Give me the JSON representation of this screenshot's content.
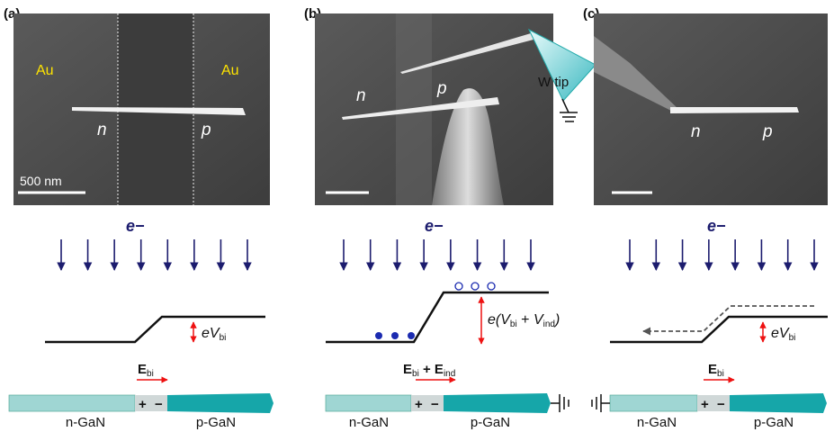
{
  "panels": [
    {
      "label": "(a)",
      "image": {
        "left_metal": "Au",
        "right_metal": "Au",
        "n": "n",
        "p": "p",
        "scale_bar": "500 nm"
      },
      "electrons": "e−",
      "band": {
        "e": "eV",
        "sub": "bi"
      },
      "field": {
        "main": "E",
        "sub": "bi"
      },
      "junction": {
        "plus": "+",
        "minus": "−"
      },
      "n_side": "n-GaN",
      "p_side": "p-GaN"
    },
    {
      "label": "(b)",
      "image": {
        "n": "n",
        "p": "p",
        "tip": "W tip"
      },
      "electrons": "e−",
      "band": {
        "open": "e(",
        "v1": "V",
        "sub1": "bi",
        "plus": " + ",
        "v2": "V",
        "sub2": "ind",
        "close": ")"
      },
      "field": {
        "main1": "E",
        "sub1": "bi",
        "plus": " + ",
        "main2": "E",
        "sub2": "ind"
      },
      "junction": {
        "plus": "+",
        "minus": "−"
      },
      "n_side": "n-GaN",
      "p_side": "p-GaN"
    },
    {
      "label": "(c)",
      "image": {
        "n": "n",
        "p": "p"
      },
      "electrons": "e−",
      "band": {
        "e": "eV",
        "sub": "bi"
      },
      "field": {
        "main": "E",
        "sub": "bi"
      },
      "junction": {
        "plus": "+",
        "minus": "−"
      },
      "n_side": "n-GaN",
      "p_side": "p-GaN"
    }
  ]
}
